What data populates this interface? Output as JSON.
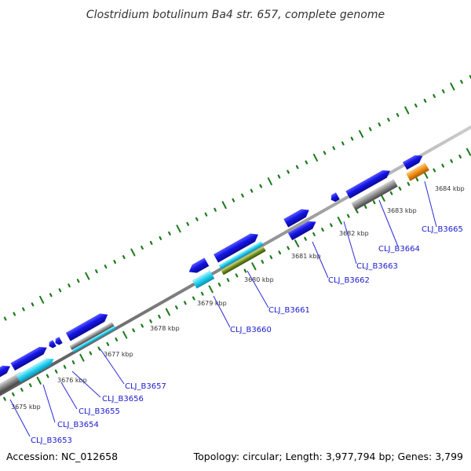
{
  "title": "Clostridium botulinum Ba4 str. 657, complete genome",
  "footer": {
    "accession": "Accession: NC_012658",
    "summary": "Topology: circular; Length: 3,977,794 bp; Genes: 3,799"
  },
  "ticks": [
    "3675 kbp",
    "3676 kbp",
    "3677 kbp",
    "3678 kbp",
    "3679 kbp",
    "3680 kbp",
    "3681 kbp",
    "3682 kbp",
    "3683 kbp",
    "3684 kbp"
  ],
  "genes": [
    "CLJ_B3653",
    "CLJ_B3654",
    "CLJ_B3655",
    "CLJ_B3656",
    "CLJ_B3657",
    "CLJ_B3660",
    "CLJ_B3661",
    "CLJ_B3662",
    "CLJ_B3663",
    "CLJ_B3664",
    "CLJ_B3665"
  ],
  "colors": {
    "backbone": "#888888",
    "cds": "#1414e6",
    "gene": "#8c8c8c",
    "trna_like": "#00ccee",
    "rrna_like": "#6f8f1a",
    "orange": "#f08c14",
    "tick": "#1a7a1a"
  }
}
